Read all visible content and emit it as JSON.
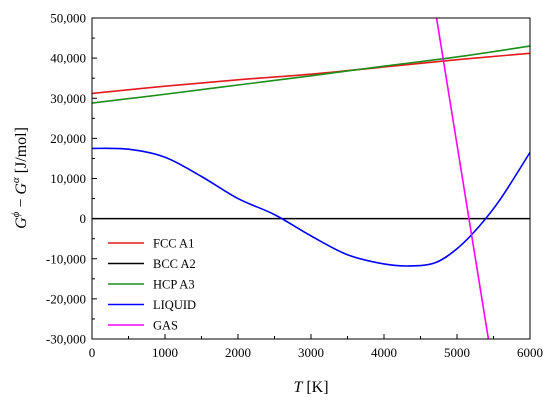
{
  "chart_data": {
    "type": "line",
    "xlabel": {
      "italic": "T",
      "rest": " [K]"
    },
    "ylabel": {
      "g1": "G",
      "sup1": "ϕ",
      "mid": " − ",
      "g2": "G",
      "sup2": "α",
      "rest": " [J/mol]"
    },
    "xlim": [
      0,
      6000
    ],
    "ylim": [
      -30000,
      50000
    ],
    "x_ticks": [
      0,
      1000,
      2000,
      3000,
      4000,
      5000,
      6000
    ],
    "y_ticks": [
      -30000,
      -20000,
      -10000,
      0,
      10000,
      20000,
      30000,
      40000,
      50000
    ],
    "x_tick_labels": [
      "0",
      "1000",
      "2000",
      "3000",
      "4000",
      "5000",
      "6000"
    ],
    "y_tick_labels": [
      "-30,000",
      "-20,000",
      "-10,000",
      "0",
      "10,000",
      "20,000",
      "30,000",
      "40,000",
      "50,000"
    ],
    "grid": false,
    "legend_position": "bottom-left",
    "series": [
      {
        "name": "FCC A1",
        "color": "#e41a1c",
        "x": [
          0,
          1000,
          2000,
          3000,
          4000,
          5000,
          6000
        ],
        "y": [
          31200,
          33000,
          34600,
          36000,
          37800,
          39600,
          41200
        ]
      },
      {
        "name": "BCC A2",
        "color": "#000000",
        "x": [
          0,
          6000
        ],
        "y": [
          0,
          0
        ]
      },
      {
        "name": "HCP A3",
        "color": "#1a8f1a",
        "x": [
          0,
          1000,
          2000,
          3000,
          4000,
          5000,
          6000
        ],
        "y": [
          28800,
          31000,
          33300,
          35600,
          38000,
          40300,
          43000
        ]
      },
      {
        "name": "LIQUID",
        "color": "#0000ff",
        "x": [
          0,
          500,
          1000,
          1500,
          2000,
          2500,
          3000,
          3500,
          4000,
          4350,
          4700,
          5000,
          5300,
          5600,
          6000
        ],
        "y": [
          17500,
          17300,
          15300,
          10500,
          5000,
          1000,
          -4300,
          -9000,
          -11300,
          -11800,
          -11000,
          -7500,
          -2000,
          5000,
          16500
        ]
      },
      {
        "name": "GAS",
        "color": "#ff00ff",
        "x": [
          4720,
          5430
        ],
        "y": [
          50000,
          -30000
        ]
      }
    ]
  }
}
